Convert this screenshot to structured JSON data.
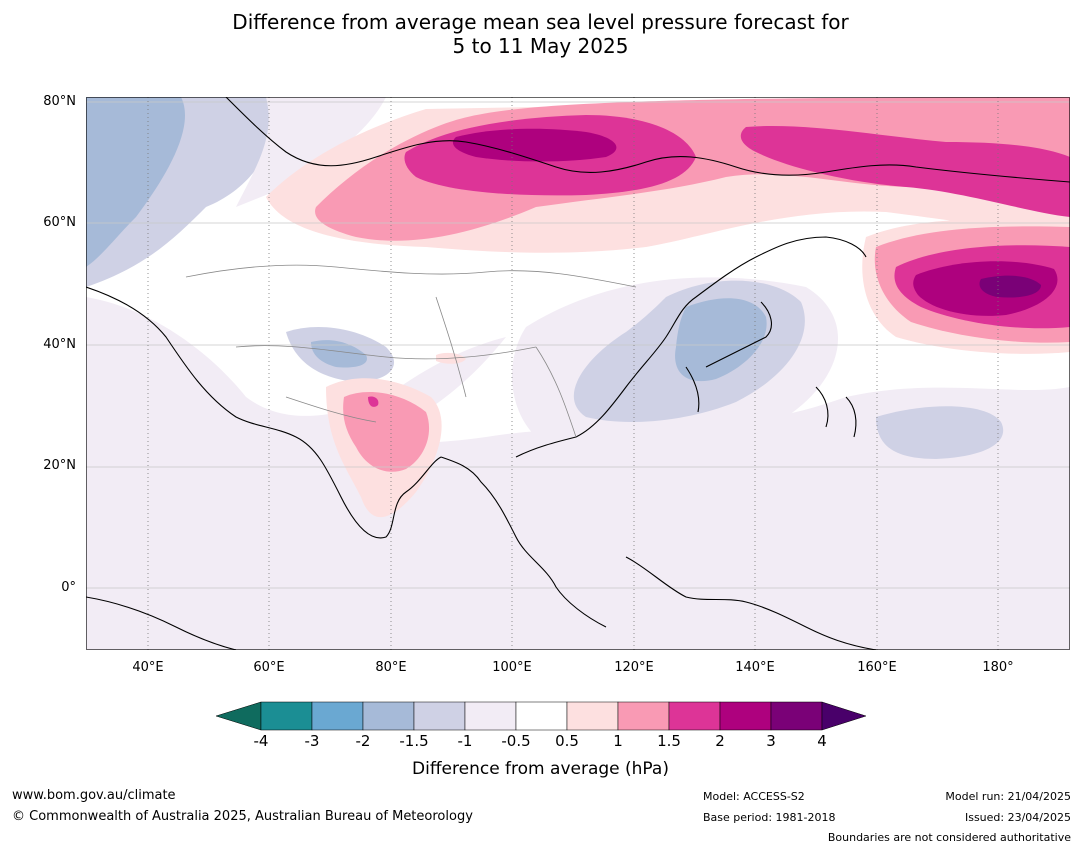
{
  "title": {
    "line1": "Difference from average mean sea level pressure forecast for",
    "line2": "5 to 11 May 2025"
  },
  "map": {
    "region": "Asia and western Pacific",
    "lat_labels": [
      "80°N",
      "60°N",
      "40°N",
      "20°N",
      "0°"
    ],
    "lon_labels": [
      "40°E",
      "60°E",
      "80°E",
      "100°E",
      "120°E",
      "140°E",
      "160°E",
      "180°"
    ],
    "anomalies": [
      {
        "area": "Siberia / Arctic",
        "level": "positive (up to 3 hPa)"
      },
      {
        "area": "North Pacific near 180°",
        "level": "positive (over 3 hPa)"
      },
      {
        "area": "Northern India",
        "level": "positive (1 to 2 hPa)"
      },
      {
        "area": "Japan / Korea",
        "level": "negative (-1 to -2 hPa)"
      },
      {
        "area": "Arabian Sea / Persian Gulf",
        "level": "negative (-0.5 to -1.5 hPa)"
      }
    ]
  },
  "colorbar": {
    "title": "Difference from average (hPa)",
    "ticks": [
      "-4",
      "-3",
      "-2",
      "-1.5",
      "-1",
      "-0.5",
      "0.5",
      "1",
      "1.5",
      "2",
      "3",
      "4"
    ],
    "colors": {
      "below_min": "#0f6b5e",
      "bins": [
        "#1b8e94",
        "#6aa8d2",
        "#a6bad8",
        "#cfd1e5",
        "#f2ecf5",
        "#ffffff",
        "#fde0e0",
        "#f99ab4",
        "#dd3497",
        "#ae017e",
        "#7a0177"
      ],
      "above_max": "#49006a"
    }
  },
  "footer": {
    "website": "www.bom.gov.au/climate",
    "copyright": "© Commonwealth of Australia 2025, Australian Bureau of Meteorology",
    "model": "Model: ACCESS-S2",
    "base_period": "Base period: 1981-2018",
    "model_run": "Model run: 21/04/2025",
    "issued": "Issued: 23/04/2025",
    "disclaimer": "Boundaries are not considered authoritative"
  }
}
